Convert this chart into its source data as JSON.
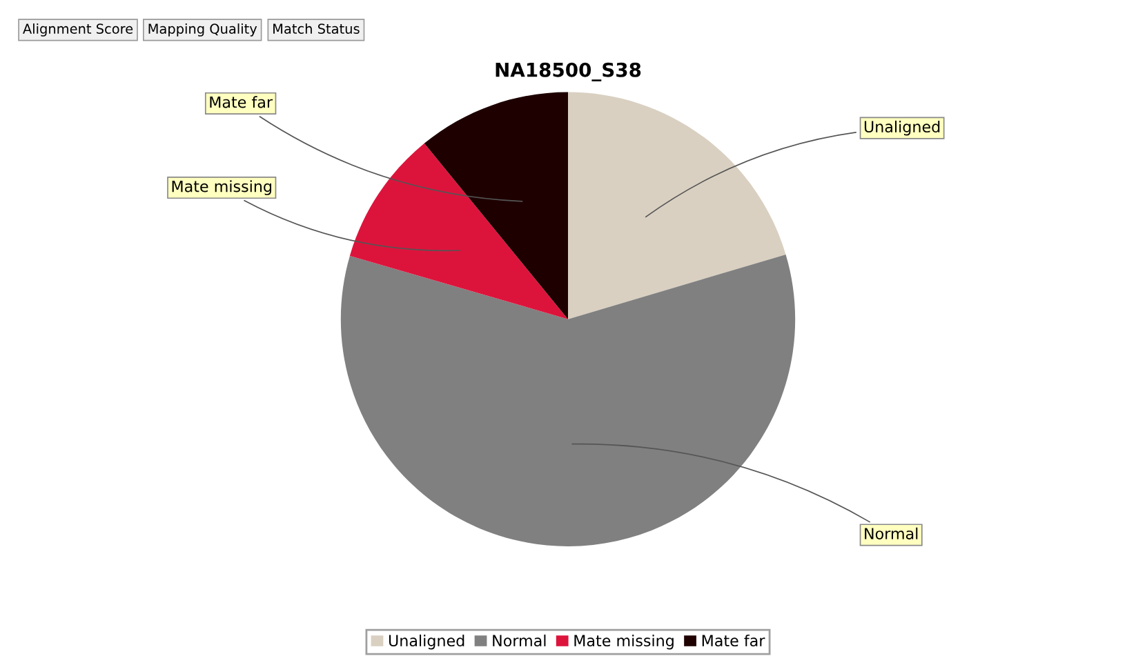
{
  "chart_data": {
    "type": "pie",
    "title": "NA18500_S38",
    "categories": [
      "Unaligned",
      "Normal",
      "Mate missing",
      "Mate far"
    ],
    "values": [
      20.4,
      59.1,
      9.6,
      10.9
    ],
    "colors": [
      "#d9d0c1",
      "#808080",
      "#dc143c",
      "#1e0000"
    ],
    "legend": "bottom",
    "annotations": [
      "Alignment Score",
      "Mapping Quality",
      "Match Status"
    ]
  }
}
